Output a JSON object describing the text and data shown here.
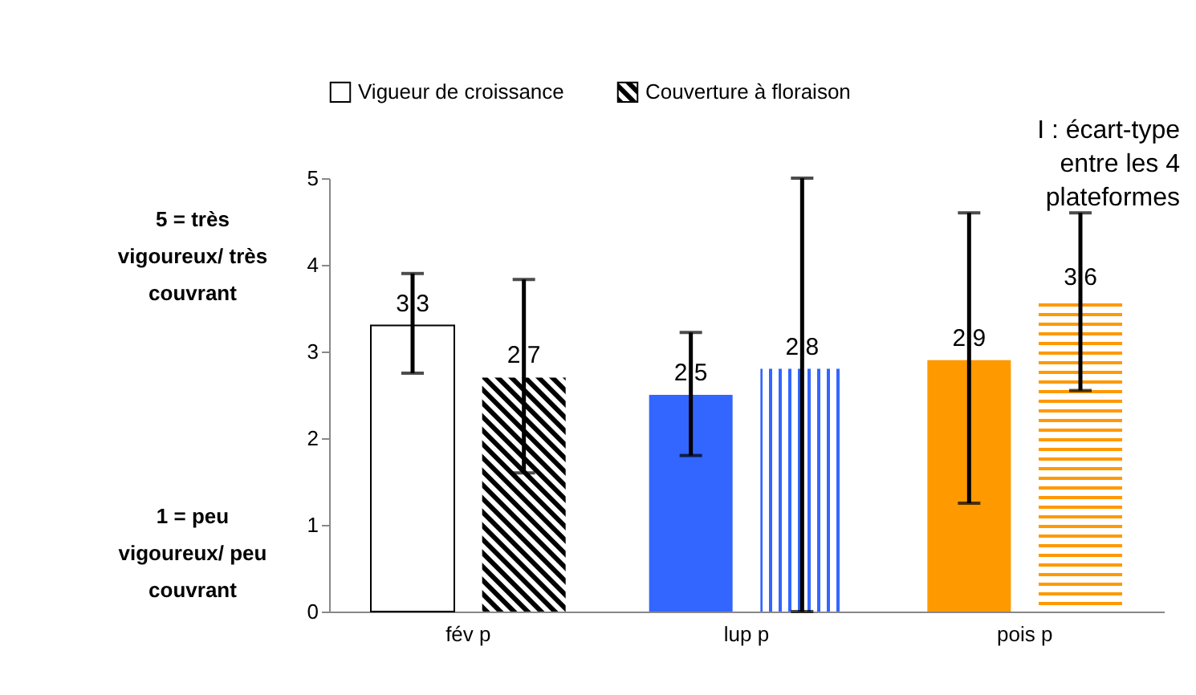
{
  "chart_data": {
    "type": "bar",
    "categories": [
      "fév p",
      "lup p",
      "pois p"
    ],
    "series": [
      {
        "name": "Vigueur de croissance",
        "colors": [
          "#ffffff",
          "#3366ff",
          "#ff9900"
        ],
        "values": [
          3.3,
          2.5,
          2.9
        ],
        "value_labels": [
          "3,3",
          "2,5",
          "2,9"
        ],
        "errors": [
          [
            2.75,
            3.9
          ],
          [
            1.8,
            3.22
          ],
          [
            1.25,
            4.6
          ]
        ]
      },
      {
        "name": "Couverture à floraison",
        "colors": [
          "#000000",
          "#3366ff",
          "#ff9900"
        ],
        "values": [
          2.7,
          2.8,
          3.6
        ],
        "value_labels": [
          "2,7",
          "2,8",
          "3,6"
        ],
        "errors": [
          [
            1.6,
            3.83
          ],
          [
            0,
            5
          ],
          [
            2.55,
            4.6
          ]
        ]
      }
    ],
    "ylim": [
      0,
      5
    ],
    "yticks": [
      0,
      1,
      2,
      3,
      4,
      5
    ],
    "grid": false,
    "legend": "top",
    "annotations": [
      "5 = très vigoureux/ très couvrant",
      "1 = peu vigoureux/ peu couvrant",
      "I : écart-type entre les 4 plateformes"
    ]
  }
}
